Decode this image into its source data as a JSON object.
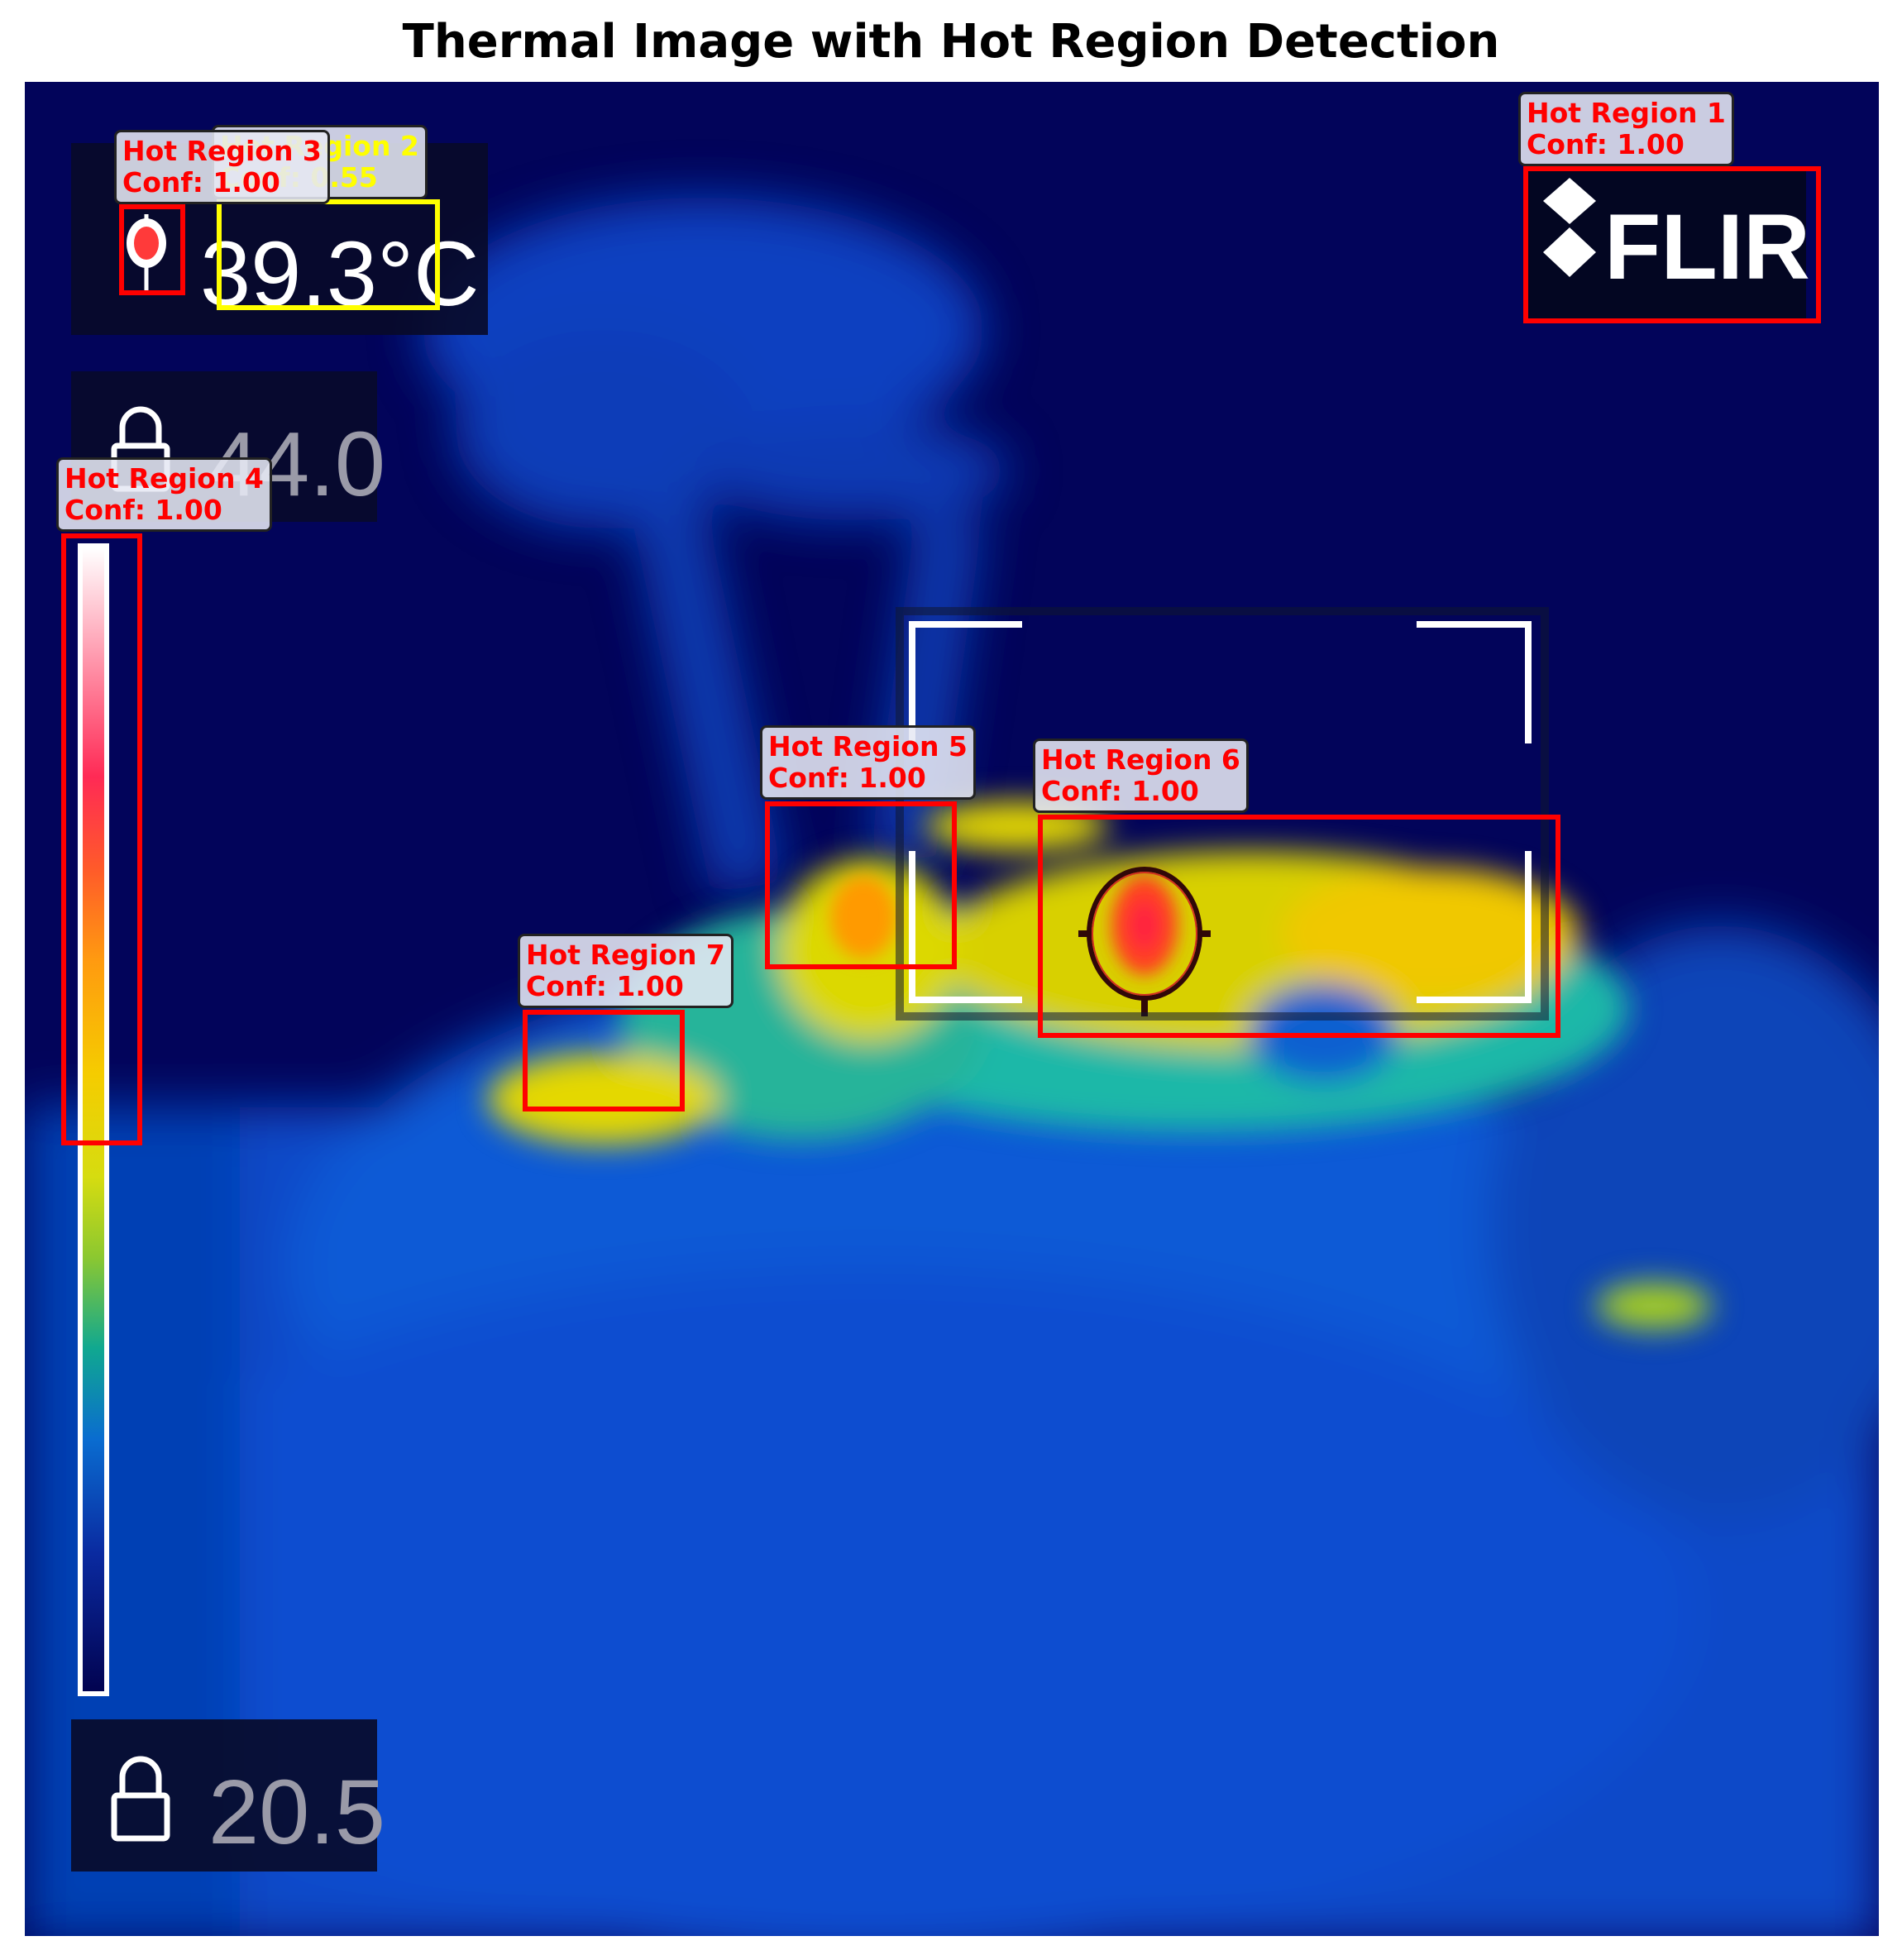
{
  "title": "Thermal Image with Hot Region Detection",
  "hud": {
    "spot_temperature": "39.3°C",
    "scale_max": "44.0",
    "scale_min": "20.5",
    "brand": "FLIR"
  },
  "colors": {
    "detection_box": "#ff0000",
    "low_confidence_box": "#ffff00",
    "background": "#02045a"
  },
  "detections": [
    {
      "label": "Hot Region 1",
      "conf": "Conf: 1.00",
      "color": "red"
    },
    {
      "label": "Hot Region 2",
      "conf": "Conf: 0.55",
      "color": "yellow"
    },
    {
      "label": "Hot Region 3",
      "conf": "Conf: 1.00",
      "color": "red"
    },
    {
      "label": "Hot Region 4",
      "conf": "Conf: 1.00",
      "color": "red"
    },
    {
      "label": "Hot Region 5",
      "conf": "Conf: 1.00",
      "color": "red"
    },
    {
      "label": "Hot Region 6",
      "conf": "Conf: 1.00",
      "color": "red"
    },
    {
      "label": "Hot Region 7",
      "conf": "Conf: 1.00",
      "color": "red"
    }
  ]
}
